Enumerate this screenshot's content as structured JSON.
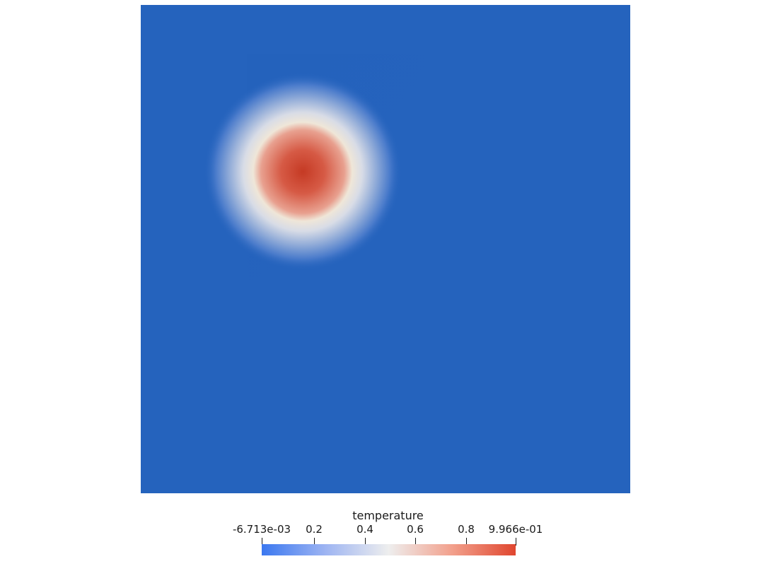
{
  "scene": {
    "background": "#ffffff",
    "field_color": "#2563bd",
    "blob_core_color": "#c9402d",
    "blob_edge_color": "#f2eee5"
  },
  "legend": {
    "title": "temperature",
    "min": -0.006713,
    "max": 0.9966,
    "ticks": [
      {
        "value": -0.006713,
        "label": "-6.713e-03"
      },
      {
        "value": 0.2,
        "label": "0.2"
      },
      {
        "value": 0.4,
        "label": "0.4"
      },
      {
        "value": 0.6,
        "label": "0.6"
      },
      {
        "value": 0.8,
        "label": "0.8"
      },
      {
        "value": 0.9966,
        "label": "9.966e-01"
      }
    ],
    "colormap": [
      "#3b4cc0",
      "#aac7fd",
      "#f1f1f1",
      "#f4a384",
      "#b40426"
    ]
  }
}
